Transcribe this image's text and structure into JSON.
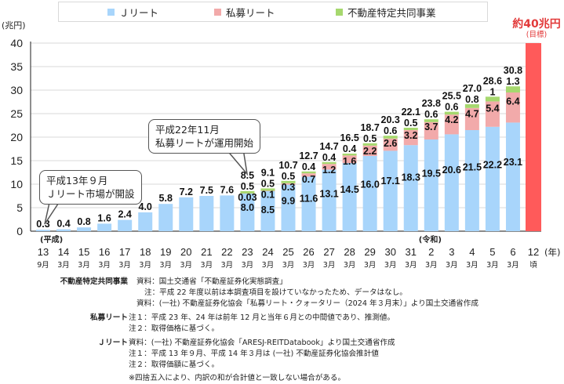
{
  "chart_data": {
    "type": "bar",
    "stacked": true,
    "title": "",
    "ylabel": "(兆円)",
    "xlabel": "(年)",
    "ylim": [
      0,
      40
    ],
    "yticks": [
      0,
      5,
      10,
      15,
      20,
      25,
      30,
      35,
      40
    ],
    "grid": true,
    "legend_position": "top",
    "era_labels": [
      {
        "index": 0,
        "label": "(平成)"
      },
      {
        "index": 19,
        "label": "(令和)"
      }
    ],
    "categories": [
      "13",
      "14",
      "15",
      "16",
      "17",
      "18",
      "19",
      "20",
      "21",
      "22",
      "23",
      "24",
      "25",
      "26",
      "27",
      "28",
      "29",
      "30",
      "31",
      "2",
      "3",
      "4",
      "5",
      "6",
      "12"
    ],
    "sub_categories": [
      "9月",
      "3月",
      "3月",
      "3月",
      "3月",
      "3月",
      "3月",
      "3月",
      "3月",
      "3月",
      "3月",
      "3月",
      "3月",
      "3月",
      "3月",
      "3月",
      "3月",
      "3月",
      "3月",
      "3月",
      "3月",
      "3月",
      "3月",
      "3月",
      "頃"
    ],
    "series": [
      {
        "name": "Jリート",
        "color": "#a8d5fb",
        "values": [
          0.3,
          0.4,
          0.8,
          1.6,
          2.4,
          4.0,
          5.8,
          7.2,
          7.5,
          7.6,
          8.0,
          8.5,
          9.9,
          11.6,
          13.1,
          14.5,
          16.0,
          17.1,
          18.3,
          19.5,
          20.6,
          21.5,
          22.2,
          23.1,
          null
        ]
      },
      {
        "name": "私募リート",
        "color": "#f2aaaa",
        "values": [
          null,
          null,
          null,
          null,
          null,
          null,
          null,
          null,
          null,
          null,
          0.03,
          0.1,
          0.3,
          0.7,
          1.2,
          1.6,
          2.2,
          2.6,
          3.2,
          3.7,
          4.2,
          4.7,
          5.4,
          6.4,
          null
        ]
      },
      {
        "name": "不動産特定共同事業",
        "color": "#a6d86e",
        "values": [
          null,
          null,
          null,
          null,
          null,
          null,
          null,
          null,
          null,
          null,
          0.5,
          0.5,
          0.5,
          0.4,
          0.4,
          0.4,
          0.5,
          0.6,
          0.5,
          0.6,
          0.6,
          0.8,
          1.0,
          1.3,
          null
        ]
      }
    ],
    "totals": [
      null,
      null,
      null,
      null,
      null,
      null,
      null,
      null,
      null,
      null,
      8.5,
      9.1,
      10.7,
      12.7,
      14.7,
      16.5,
      18.7,
      20.3,
      22.1,
      23.8,
      25.5,
      27.0,
      28.6,
      30.8,
      null
    ],
    "target": {
      "index": 24,
      "value": 40,
      "color": "#ff5a5a",
      "label": "約40兆円",
      "sublabel": "(目標)"
    },
    "annotations": [
      {
        "text_lines": [
          "平成13年９月",
          "Ｊリート市場が開設"
        ],
        "points_to_index": 0
      },
      {
        "text_lines": [
          "平成22年11月",
          "私募リートが運用開始"
        ],
        "points_to_index": 10
      }
    ]
  },
  "legend": [
    {
      "label": "Ｊリート",
      "color": "#a8d5fb"
    },
    {
      "label": "私募リート",
      "color": "#f2aaaa"
    },
    {
      "label": "不動産特定共同事業",
      "color": "#a6d86e"
    }
  ],
  "notes": {
    "fudosan": {
      "head": "不動産特定共同事業",
      "lines": [
        "資料：国土交通省「不動産証券化実態調査」",
        "注：平成 22 年度以前は本調査項目を設けていなかったため、データはなし。",
        "資料：(一社) 不動産証券化協会「私募リート・クォータリー（2024 年３月末）」より国土交通省作成"
      ]
    },
    "shibo": {
      "head": "私募リート",
      "lines": [
        "注１：平成 23 年、24 年は前年 12 月と当年６月との中間値であり、推測値。",
        "注２：取得価格に基づく。"
      ]
    },
    "jreit": {
      "head": "Ｊリート",
      "lines": [
        "資料：(一社) 不動産証券化協会「ARESJ-REITDatabook」より国土交通省作成",
        "注１：平成 13 年９月、平成 14 年３月は (一社) 不動産証券化協会推計値",
        "注２：取得価額に基づく。"
      ]
    },
    "footnote": "※四捨五入により、内訳の和が合計値と一致しない場合がある。"
  }
}
